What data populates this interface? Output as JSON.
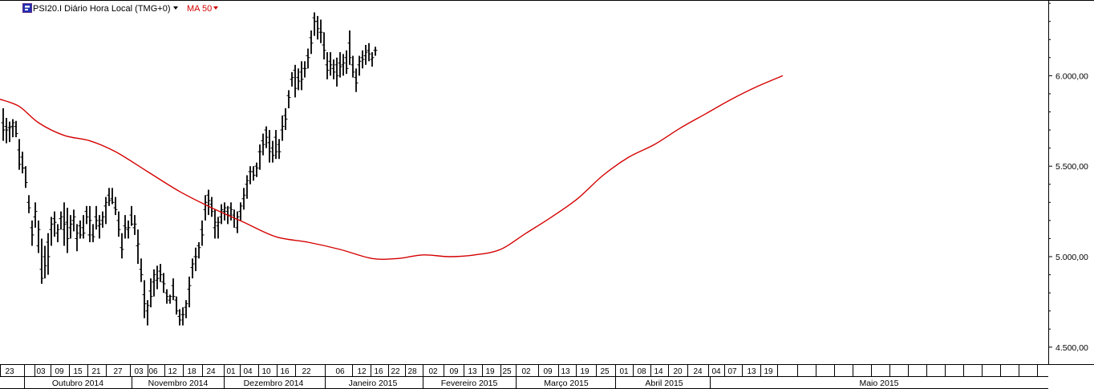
{
  "header": {
    "instrument_label": "PSI20.I Diário Hora Local (TMG+0)",
    "indicator_label": "MA 50",
    "indicator_color": "#d40000",
    "icon": "chart-series-icon",
    "dropdown_icon": "chevron-down-icon"
  },
  "chart_data": {
    "type": "ohlc-bar",
    "title": "",
    "xlabel": "",
    "ylabel": "",
    "ylim": [
      4415,
      6405
    ],
    "grid": false,
    "y_ticks": [
      {
        "value": 4500,
        "label": "4.500,00"
      },
      {
        "value": 5000,
        "label": "5.000,00"
      },
      {
        "value": 5500,
        "label": "5.500,00"
      },
      {
        "value": 6000,
        "label": "6.000,00"
      }
    ],
    "x_day_labels": [
      "23",
      "03",
      "09",
      "15",
      "21",
      "27",
      "03",
      "06",
      "12",
      "18",
      "24",
      "01",
      "04",
      "10",
      "16",
      "22",
      "06",
      "12",
      "16",
      "22",
      "28",
      "02",
      "09",
      "13",
      "19",
      "25",
      "02",
      "09",
      "13",
      "19",
      "25",
      "01",
      "08",
      "14",
      "20",
      "24",
      "04",
      "07",
      "13",
      "19"
    ],
    "x_month_labels": [
      "Outubro 2014",
      "Novembro 2014",
      "Dezembro 2014",
      "Janeiro 2015",
      "Fevereiro 2015",
      "Março 2015",
      "Abril 2015",
      "Maio 2015"
    ],
    "bar_count": 158,
    "bar_color": "#000000",
    "bar_anchors": [
      [
        0,
        5740,
        5820,
        5640,
        5700
      ],
      [
        3,
        5710,
        5740,
        5620,
        5700
      ],
      [
        6,
        5720,
        5760,
        5660,
        5740
      ],
      [
        8,
        5720,
        5750,
        5660,
        5680
      ],
      [
        10,
        5590,
        5650,
        5480,
        5510
      ],
      [
        12,
        5550,
        5580,
        5460,
        5490
      ],
      [
        14,
        5490,
        5500,
        5380,
        5410
      ],
      [
        16,
        5300,
        5340,
        5240,
        5270
      ],
      [
        18,
        5160,
        5200,
        5060,
        5120
      ],
      [
        20,
        5220,
        5300,
        5160,
        5250
      ],
      [
        22,
        5060,
        5200,
        5020,
        5150
      ],
      [
        24,
        4930,
        5100,
        4850,
        4880
      ],
      [
        26,
        5000,
        5060,
        4880,
        4950
      ],
      [
        28,
        5080,
        5130,
        4900,
        5000
      ],
      [
        30,
        5150,
        5220,
        5060,
        5180
      ],
      [
        32,
        5210,
        5250,
        5110,
        5190
      ],
      [
        34,
        5130,
        5180,
        5080,
        5150
      ],
      [
        36,
        5210,
        5250,
        5150,
        5220
      ],
      [
        38,
        5150,
        5300,
        5060,
        5180
      ],
      [
        40,
        5190,
        5270,
        5020,
        5100
      ],
      [
        42,
        5160,
        5230,
        5100,
        5180
      ],
      [
        44,
        5200,
        5260,
        5140,
        5220
      ],
      [
        46,
        5100,
        5180,
        5030,
        5130
      ],
      [
        48,
        5170,
        5200,
        5100,
        5120
      ],
      [
        50,
        5160,
        5230,
        5100,
        5130
      ],
      [
        52,
        5250,
        5280,
        5180,
        5220
      ],
      [
        54,
        5120,
        5280,
        5080,
        5200
      ],
      [
        56,
        5120,
        5180,
        5080,
        5110
      ],
      [
        58,
        5220,
        5280,
        5150,
        5200
      ],
      [
        60,
        5170,
        5230,
        5100,
        5180
      ],
      [
        62,
        5200,
        5250,
        5160,
        5220
      ],
      [
        64,
        5280,
        5330,
        5180,
        5300
      ],
      [
        66,
        5340,
        5380,
        5280,
        5310
      ],
      [
        68,
        5320,
        5380,
        5290,
        5300
      ],
      [
        70,
        5270,
        5330,
        5230,
        5260
      ],
      [
        72,
        5200,
        5250,
        5110,
        5150
      ],
      [
        74,
        5050,
        5130,
        4990,
        5040
      ],
      [
        76,
        5170,
        5230,
        5100,
        5160
      ],
      [
        78,
        5150,
        5200,
        5100,
        5160
      ],
      [
        80,
        5230,
        5280,
        5170,
        5180
      ],
      [
        82,
        5160,
        5230,
        5120,
        5180
      ],
      [
        84,
        5060,
        5150,
        4960,
        5070
      ],
      [
        86,
        4930,
        4990,
        4860,
        4900
      ],
      [
        88,
        4790,
        4870,
        4660,
        4740
      ],
      [
        90,
        4700,
        4760,
        4620,
        4730
      ],
      [
        92,
        4810,
        4880,
        4720,
        4780
      ],
      [
        94,
        4860,
        4930,
        4780,
        4900
      ],
      [
        96,
        4870,
        4950,
        4820,
        4880
      ],
      [
        98,
        4920,
        4960,
        4860,
        4900
      ],
      [
        100,
        4860,
        4910,
        4800,
        4850
      ],
      [
        102,
        4800,
        4820,
        4740,
        4780
      ],
      [
        104,
        4760,
        4790,
        4740,
        4780
      ],
      [
        106,
        4840,
        4880,
        4760,
        4780
      ],
      [
        108,
        4760,
        4780,
        4680,
        4700
      ],
      [
        110,
        4670,
        4710,
        4620,
        4650
      ],
      [
        112,
        4680,
        4720,
        4620,
        4680
      ],
      [
        114,
        4720,
        4760,
        4660,
        4740
      ],
      [
        116,
        4820,
        4890,
        4720,
        4840
      ],
      [
        118,
        4940,
        4990,
        4880,
        4960
      ],
      [
        120,
        5000,
        5050,
        4920,
        5000
      ],
      [
        122,
        5060,
        5080,
        4990,
        5050
      ],
      [
        124,
        5150,
        5200,
        5060,
        5120
      ],
      [
        126,
        5260,
        5340,
        5200,
        5300
      ],
      [
        128,
        5340,
        5370,
        5230,
        5310
      ],
      [
        130,
        5290,
        5330,
        5220,
        5250
      ],
      [
        132,
        5160,
        5260,
        5100,
        5190
      ],
      [
        134,
        5170,
        5220,
        5100,
        5190
      ],
      [
        136,
        5220,
        5290,
        5180,
        5260
      ],
      [
        138,
        5250,
        5300,
        5200,
        5270
      ],
      [
        140,
        5250,
        5280,
        5180,
        5230
      ],
      [
        142,
        5270,
        5300,
        5200,
        5260
      ],
      [
        144,
        5230,
        5260,
        5160,
        5210
      ],
      [
        146,
        5160,
        5250,
        5130,
        5220
      ],
      [
        148,
        5250,
        5300,
        5200,
        5280
      ],
      [
        150,
        5320,
        5380,
        5260,
        5340
      ],
      [
        152,
        5400,
        5450,
        5320,
        5420
      ],
      [
        154,
        5470,
        5500,
        5400,
        5470
      ],
      [
        156,
        5470,
        5500,
        5420,
        5450
      ],
      [
        158,
        5500,
        5520,
        5440,
        5490
      ],
      [
        160,
        5580,
        5620,
        5480,
        5580
      ],
      [
        162,
        5640,
        5680,
        5560,
        5620
      ],
      [
        164,
        5700,
        5720,
        5600,
        5660
      ],
      [
        166,
        5630,
        5700,
        5520,
        5580
      ],
      [
        168,
        5600,
        5640,
        5520,
        5560
      ],
      [
        170,
        5660,
        5700,
        5540,
        5580
      ],
      [
        172,
        5620,
        5650,
        5540,
        5580
      ],
      [
        174,
        5700,
        5780,
        5640,
        5720
      ],
      [
        176,
        5780,
        5820,
        5700,
        5760
      ],
      [
        178,
        5890,
        5920,
        5820,
        5880
      ],
      [
        180,
        5980,
        6020,
        5940,
        5990
      ],
      [
        182,
        6030,
        6060,
        5880,
        5930
      ],
      [
        184,
        5990,
        6040,
        5920,
        5970
      ],
      [
        186,
        6020,
        6080,
        5920,
        5980
      ],
      [
        188,
        6040,
        6080,
        5990,
        6040
      ],
      [
        190,
        6110,
        6150,
        6040,
        6100
      ],
      [
        192,
        6210,
        6250,
        6120,
        6180
      ],
      [
        194,
        6320,
        6350,
        6220,
        6300
      ],
      [
        196,
        6300,
        6330,
        6200,
        6260
      ],
      [
        198,
        6240,
        6310,
        6180,
        6240
      ],
      [
        200,
        6170,
        6240,
        6090,
        6140
      ],
      [
        202,
        6060,
        6130,
        5980,
        6030
      ],
      [
        204,
        6080,
        6130,
        6000,
        6060
      ],
      [
        206,
        6040,
        6090,
        5980,
        6020
      ],
      [
        208,
        6060,
        6100,
        5940,
        6000
      ],
      [
        210,
        6070,
        6130,
        5990,
        6050
      ],
      [
        212,
        6060,
        6120,
        6000,
        6070
      ],
      [
        214,
        6100,
        6140,
        6010,
        6040
      ],
      [
        216,
        6180,
        6250,
        6060,
        6100
      ],
      [
        218,
        6060,
        6110,
        5990,
        6020
      ],
      [
        220,
        5990,
        6040,
        5910,
        5960
      ],
      [
        222,
        6060,
        6110,
        6000,
        6080
      ],
      [
        224,
        6100,
        6140,
        6040,
        6090
      ],
      [
        226,
        6110,
        6170,
        6060,
        6130
      ],
      [
        228,
        6140,
        6180,
        6080,
        6120
      ],
      [
        230,
        6090,
        6130,
        6050,
        6100
      ],
      [
        232,
        6140,
        6160,
        6110,
        6140
      ]
    ],
    "ma_color": "#d40000",
    "ma_anchors": [
      [
        0,
        5870
      ],
      [
        6,
        5830
      ],
      [
        12,
        5740
      ],
      [
        20,
        5670
      ],
      [
        28,
        5640
      ],
      [
        36,
        5580
      ],
      [
        46,
        5470
      ],
      [
        56,
        5360
      ],
      [
        66,
        5270
      ],
      [
        76,
        5190
      ],
      [
        86,
        5110
      ],
      [
        96,
        5080
      ],
      [
        106,
        5040
      ],
      [
        116,
        4990
      ],
      [
        124,
        4990
      ],
      [
        132,
        5010
      ],
      [
        140,
        5000
      ],
      [
        148,
        5010
      ],
      [
        156,
        5040
      ],
      [
        164,
        5130
      ],
      [
        172,
        5220
      ],
      [
        180,
        5320
      ],
      [
        188,
        5450
      ],
      [
        196,
        5550
      ],
      [
        204,
        5620
      ],
      [
        212,
        5710
      ],
      [
        220,
        5790
      ],
      [
        228,
        5870
      ],
      [
        236,
        5940
      ],
      [
        244,
        6000
      ]
    ]
  }
}
